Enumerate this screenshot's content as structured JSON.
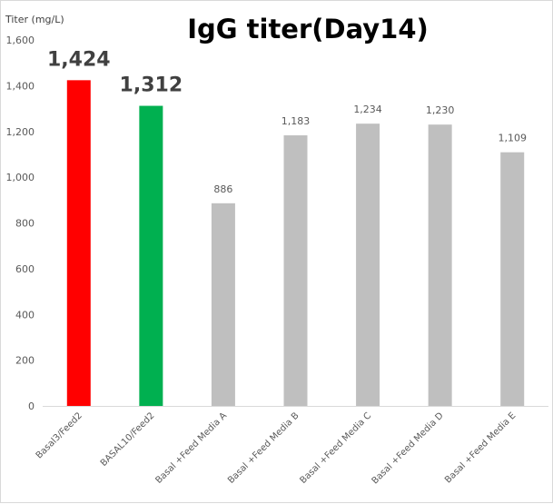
{
  "chart_data": {
    "type": "bar",
    "title": "IgG titer(Day14)",
    "ylabel": "Titer (mg/L)",
    "xlabel": "",
    "ylim": [
      0,
      1600
    ],
    "yticks": [
      "0",
      "200",
      "400",
      "600",
      "800",
      "1,000",
      "1,200",
      "1,400",
      "1,600"
    ],
    "grid": false,
    "categories": [
      "Basal3/Feed2",
      "BASAL10/Feed2",
      "Basal +Feed Media A",
      "Basal +Feed Media B",
      "Basal +Feed Media C",
      "Basal +Feed Media D",
      "Basal +Feed Media E"
    ],
    "values": [
      1424,
      1312,
      886,
      1183,
      1234,
      1230,
      1109
    ],
    "data_labels": [
      "1,424",
      "1,312",
      "886",
      "1,183",
      "1,234",
      "1,230",
      "1,109"
    ],
    "highlight_labels": [
      true,
      true,
      false,
      false,
      false,
      false,
      false
    ],
    "colors": [
      "#ff0000",
      "#00b050",
      "#bfbfbf",
      "#bfbfbf",
      "#bfbfbf",
      "#bfbfbf",
      "#bfbfbf"
    ],
    "axis_color": "#d9d9d9"
  }
}
